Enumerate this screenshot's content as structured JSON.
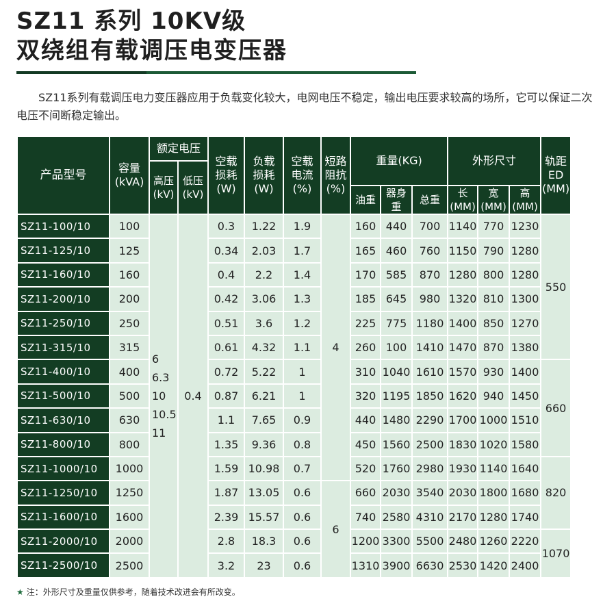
{
  "title": {
    "line1": "SZ11 系列 10KV级",
    "line2": "双绕组有载调压电变压器"
  },
  "intro": "SZ11系列有载调压电力变压器应用于负载变化较大，电网电压不稳定，输出电压要求较高的场所，它可以保证二次电压不间断稳定输出。",
  "headers": {
    "model": "产品型号",
    "capacity": "容量",
    "capacity_unit": "(kVA)",
    "rated_voltage": "额定电压",
    "hv": "高压",
    "hv_unit": "(kV)",
    "lv": "低压",
    "lv_unit": "(kV)",
    "noload_loss_1": "空载",
    "noload_loss_2": "损耗",
    "noload_loss_unit": "(W)",
    "load_loss_1": "负载",
    "load_loss_2": "损耗",
    "load_loss_unit": "(W)",
    "noload_current_1": "空载",
    "noload_current_2": "电流",
    "noload_current_unit": "(%)",
    "impedance_1": "短路",
    "impedance_2": "阻抗",
    "impedance_unit": "(%)",
    "weight": "重量(KG)",
    "oil": "油重",
    "body": "器身重",
    "total": "总重",
    "dims": "外形尺寸",
    "length": "长",
    "length_unit": "(MM)",
    "width": "宽",
    "width_unit": "(MM)",
    "height": "高",
    "height_unit": "(MM)",
    "gauge_1": "轨距",
    "gauge_2": "ED",
    "gauge_unit": "(MM)"
  },
  "merged": {
    "hv_values": [
      "6",
      "6.3",
      "10",
      "10.5",
      "11"
    ],
    "lv_value": "0.4",
    "impedance": [
      "4",
      "6"
    ],
    "gauge": [
      "550",
      "660",
      "820",
      "1070"
    ]
  },
  "rows": [
    [
      "SZ11-100/10",
      "100",
      "0.3",
      "1.22",
      "1.9",
      "160",
      "440",
      "700",
      "1140",
      "770",
      "1230"
    ],
    [
      "SZ11-125/10",
      "125",
      "0.34",
      "2.03",
      "1.7",
      "165",
      "460",
      "760",
      "1150",
      "790",
      "1280"
    ],
    [
      "SZ11-160/10",
      "160",
      "0.4",
      "2.2",
      "1.4",
      "170",
      "585",
      "870",
      "1280",
      "800",
      "1280"
    ],
    [
      "SZ11-200/10",
      "200",
      "0.42",
      "3.06",
      "1.3",
      "185",
      "645",
      "980",
      "1320",
      "810",
      "1300"
    ],
    [
      "SZ11-250/10",
      "250",
      "0.51",
      "3.6",
      "1.2",
      "225",
      "775",
      "1180",
      "1400",
      "850",
      "1270"
    ],
    [
      "SZ11-315/10",
      "315",
      "0.61",
      "4.32",
      "1.1",
      "260",
      "100",
      "1410",
      "1470",
      "870",
      "1380"
    ],
    [
      "SZ11-400/10",
      "400",
      "0.72",
      "5.22",
      "1",
      "310",
      "1040",
      "1610",
      "1570",
      "930",
      "1400"
    ],
    [
      "SZ11-500/10",
      "500",
      "0.87",
      "6.21",
      "1",
      "320",
      "1195",
      "1850",
      "1620",
      "940",
      "1450"
    ],
    [
      "SZ11-630/10",
      "630",
      "1.1",
      "7.65",
      "0.9",
      "440",
      "1480",
      "2290",
      "1700",
      "1000",
      "1510"
    ],
    [
      "SZ11-800/10",
      "800",
      "1.35",
      "9.36",
      "0.8",
      "450",
      "1560",
      "2500",
      "1830",
      "1020",
      "1580"
    ],
    [
      "SZ11-1000/10",
      "1000",
      "1.59",
      "10.98",
      "0.7",
      "520",
      "1760",
      "2980",
      "1930",
      "1140",
      "1640"
    ],
    [
      "SZ11-1250/10",
      "1250",
      "1.87",
      "13.05",
      "0.6",
      "660",
      "2030",
      "3540",
      "2030",
      "1800",
      "1680"
    ],
    [
      "SZ11-1600/10",
      "1600",
      "2.39",
      "15.57",
      "0.6",
      "740",
      "2580",
      "4310",
      "2170",
      "1280",
      "1740"
    ],
    [
      "SZ11-2000/10",
      "2000",
      "2.8",
      "18.3",
      "0.6",
      "1200",
      "3300",
      "5500",
      "2480",
      "1260",
      "2220"
    ],
    [
      "SZ11-2500/10",
      "2500",
      "3.2",
      "23",
      "0.6",
      "1310",
      "3900",
      "6630",
      "2530",
      "1420",
      "2400"
    ]
  ],
  "note": {
    "star": "★",
    "text": "注：外形尺寸及重量仅供参考，随着技术改进会有所改变。"
  }
}
